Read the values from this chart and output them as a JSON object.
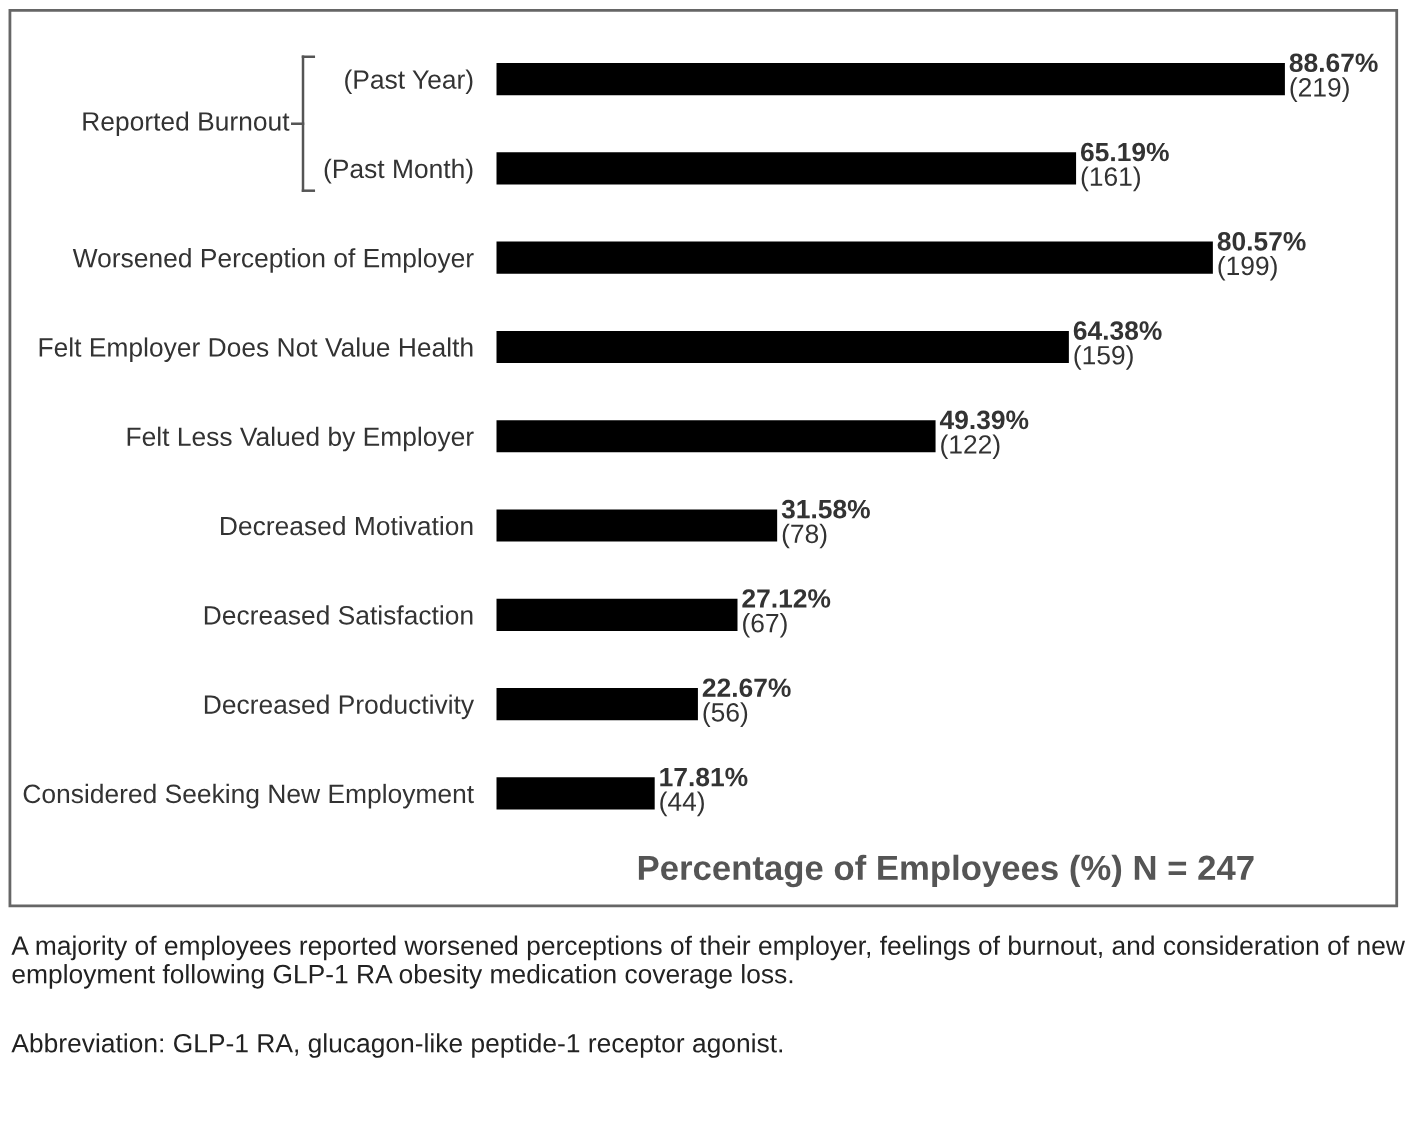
{
  "chart_data": {
    "type": "bar",
    "orientation": "horizontal",
    "xlabel": "Percentage of Employees (%) N = 247",
    "categories": [
      "(Past Year)",
      "(Past Month)",
      "Worsened Perception of Employer",
      "Felt Employer Does Not Value Health",
      "Felt Less Valued by Employer",
      "Decreased Motivation",
      "Decreased Satisfaction",
      "Decreased Productivity",
      "Considered Seeking New Employment"
    ],
    "values": [
      88.67,
      65.19,
      80.57,
      64.38,
      49.39,
      31.58,
      27.12,
      22.67,
      17.81
    ],
    "value_labels": [
      "88.67%\n(219)",
      "65.19%\n(161)",
      "80.57%\n(199)",
      "64.38%\n(159)",
      "49.39%\n(122)",
      "31.58%\n(78)",
      "27.12%\n(67)",
      "22.67%\n(56)",
      "17.81%\n(44)"
    ],
    "color": "#000000",
    "annotations": [
      "Reported Burnout",
      "A majority of employees reported worsened perceptions of their employer, feelings of burnout, and consideration of new employment following GLP-1 RA obesity medication coverage loss.",
      "Abbreviation: GLP-1 RA, glucagon-like peptide-1 receptor agonist."
    ]
  }
}
